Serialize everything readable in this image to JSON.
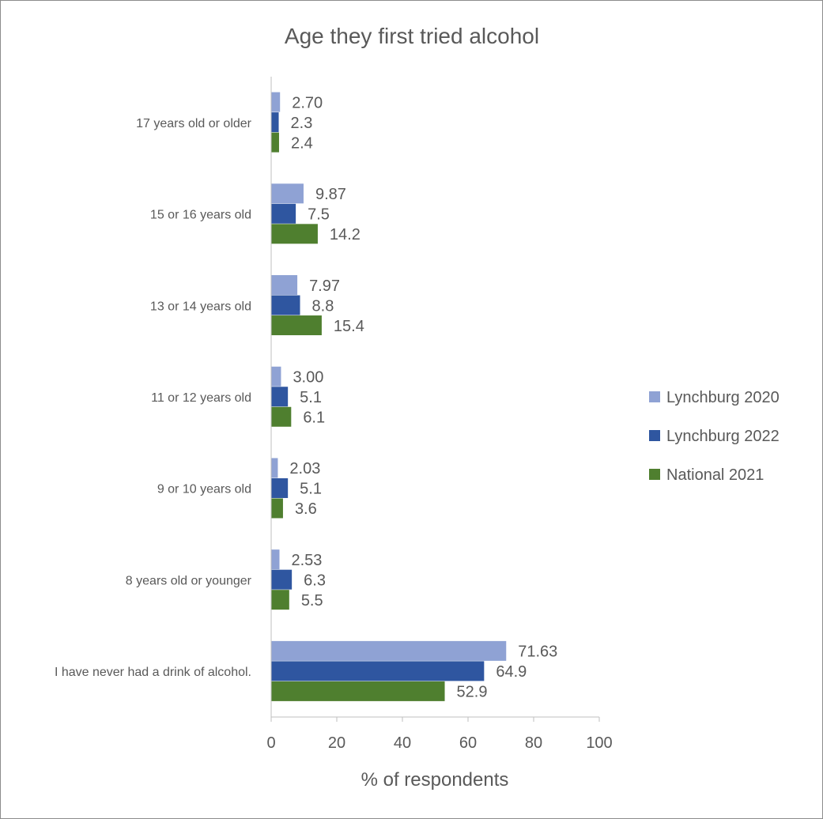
{
  "chart_data": {
    "type": "bar",
    "orientation": "horizontal",
    "title": "Age they first tried alcohol",
    "xlabel": "% of respondents",
    "ylabel": "",
    "xlim": [
      0,
      100
    ],
    "xticks": [
      "0",
      "20",
      "40",
      "60",
      "80",
      "100"
    ],
    "grid": false,
    "legend_position": "right",
    "categories": [
      "17 years old or older",
      "15 or 16 years old",
      "13 or 14 years old",
      "11 or 12 years old",
      "9 or 10 years old",
      "8 years old or younger",
      "I have never had a drink of alcohol."
    ],
    "series": [
      {
        "name": "Lynchburg 2020",
        "color": "#8fa2d4",
        "values": [
          2.7,
          9.87,
          7.97,
          3.0,
          2.03,
          2.53,
          71.63
        ],
        "labels": [
          "2.70",
          "9.87",
          "7.97",
          "3.00",
          "2.03",
          "2.53",
          "71.63"
        ]
      },
      {
        "name": "Lynchburg 2022",
        "color": "#2f56a0",
        "values": [
          2.3,
          7.5,
          8.8,
          5.1,
          5.1,
          6.3,
          64.9
        ],
        "labels": [
          "2.3",
          "7.5",
          "8.8",
          "5.1",
          "5.1",
          "6.3",
          "64.9"
        ]
      },
      {
        "name": "National 2021",
        "color": "#4f7f2f",
        "values": [
          2.4,
          14.2,
          15.4,
          6.1,
          3.6,
          5.5,
          52.9
        ],
        "labels": [
          "2.4",
          "14.2",
          "15.4",
          "6.1",
          "3.6",
          "5.5",
          "52.9"
        ]
      }
    ]
  }
}
